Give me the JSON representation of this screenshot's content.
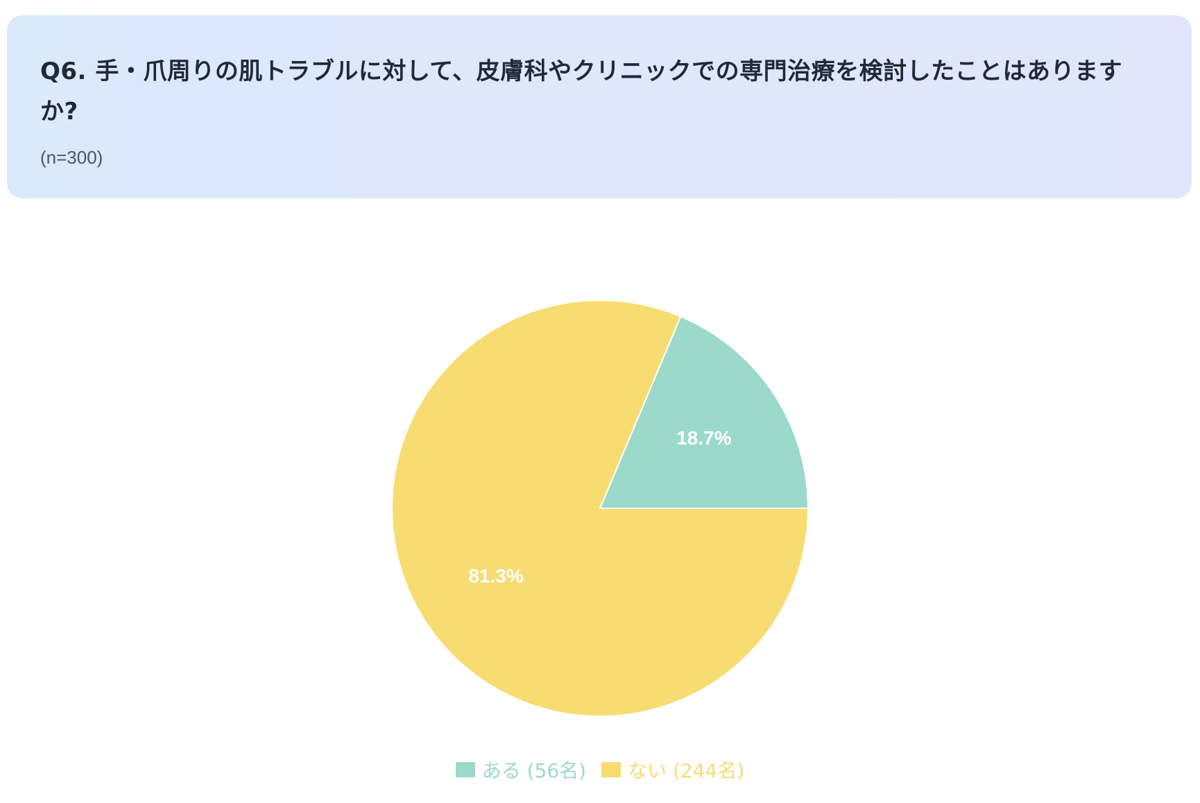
{
  "header": {
    "title": "Q6. 手・爪周りの肌トラブルに対して、皮膚科やクリニックでの専門治療を検討したことはありますか?",
    "sample_size": "(n=300)"
  },
  "chart_data": {
    "type": "pie",
    "categories": [
      "ある (56名)",
      "ない (244名)"
    ],
    "values": [
      56,
      244
    ],
    "percent_labels": [
      "18.7%",
      "81.3%"
    ],
    "colors": [
      "#9bd9ca",
      "#f7dc72"
    ],
    "legend_position": "bottom",
    "start_angle_deg": 0,
    "direction": "counterclockwise"
  }
}
